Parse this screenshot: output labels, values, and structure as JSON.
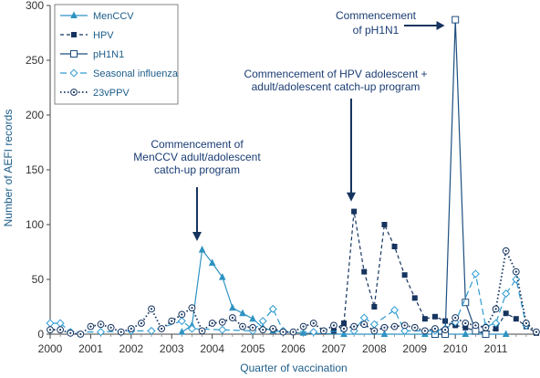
{
  "chart_data": {
    "type": "line",
    "xlabel": "Quarter of vaccination",
    "ylabel": "Number of AEFI records",
    "ylim": [
      0,
      300
    ],
    "yticks": [
      "0",
      "50",
      "100",
      "150",
      "200",
      "250",
      "300"
    ],
    "xticks": [
      "2000",
      "2001",
      "2002",
      "2003",
      "2004",
      "2005",
      "2006",
      "2007",
      "2008",
      "2009",
      "2010",
      "2011"
    ],
    "xlim": [
      2000,
      2012
    ],
    "grid": false,
    "legend_position": "top-left",
    "series": [
      {
        "name": "MenCCV",
        "style": "solid",
        "marker": "triangle",
        "color": "#2f93c2",
        "points": [
          [
            2003.25,
            2
          ],
          [
            2003.5,
            8
          ],
          [
            2003.75,
            77
          ],
          [
            2004.0,
            65
          ],
          [
            2004.25,
            52
          ],
          [
            2004.5,
            24
          ],
          [
            2004.75,
            19
          ],
          [
            2005.0,
            14
          ],
          [
            2005.25,
            6
          ],
          [
            2005.5,
            3
          ],
          [
            2005.75,
            2
          ],
          [
            2006.25,
            1
          ],
          [
            2007.25,
            0
          ],
          [
            2008.25,
            0
          ],
          [
            2009.25,
            0
          ],
          [
            2010.25,
            0
          ],
          [
            2011.25,
            0
          ]
        ]
      },
      {
        "name": "HPV",
        "style": "dashed",
        "marker": "square-filled",
        "color": "#16345f",
        "points": [
          [
            2007.0,
            3
          ],
          [
            2007.25,
            10
          ],
          [
            2007.5,
            112
          ],
          [
            2007.75,
            57
          ],
          [
            2008.0,
            25
          ],
          [
            2008.25,
            100
          ],
          [
            2008.5,
            80
          ],
          [
            2008.75,
            54
          ],
          [
            2009.0,
            33
          ],
          [
            2009.25,
            14
          ],
          [
            2009.5,
            16
          ],
          [
            2009.75,
            12
          ],
          [
            2010.0,
            8
          ],
          [
            2010.25,
            6
          ],
          [
            2010.5,
            3
          ],
          [
            2010.75,
            1
          ],
          [
            2011.0,
            5
          ],
          [
            2011.25,
            19
          ],
          [
            2011.5,
            14
          ],
          [
            2011.75,
            7
          ],
          [
            2012.0,
            1
          ]
        ]
      },
      {
        "name": "pH1N1",
        "style": "solid",
        "marker": "square-open",
        "color": "#1d4f80",
        "points": [
          [
            2009.5,
            0
          ],
          [
            2009.75,
            0
          ],
          [
            2010.0,
            287
          ],
          [
            2010.25,
            29
          ],
          [
            2010.5,
            3
          ],
          [
            2010.75,
            0
          ]
        ]
      },
      {
        "name": "Seasonal influenza",
        "style": "dashed-long",
        "marker": "diamond-open",
        "color": "#2e9bd1",
        "points": [
          [
            2000.0,
            10
          ],
          [
            2000.25,
            10
          ],
          [
            2000.5,
            2
          ],
          [
            2001.25,
            2
          ],
          [
            2002.0,
            3
          ],
          [
            2002.5,
            3
          ],
          [
            2003.25,
            12
          ],
          [
            2003.5,
            5
          ],
          [
            2004.25,
            4
          ],
          [
            2005.0,
            3
          ],
          [
            2005.25,
            12
          ],
          [
            2005.5,
            23
          ],
          [
            2005.75,
            3
          ],
          [
            2006.5,
            2
          ],
          [
            2007.5,
            3
          ],
          [
            2007.75,
            15
          ],
          [
            2008.0,
            9
          ],
          [
            2008.5,
            22
          ],
          [
            2008.75,
            3
          ],
          [
            2009.5,
            3
          ],
          [
            2009.75,
            5
          ],
          [
            2010.0,
            11
          ],
          [
            2010.5,
            55
          ],
          [
            2010.75,
            7
          ],
          [
            2011.0,
            10
          ],
          [
            2011.25,
            37
          ],
          [
            2011.5,
            50
          ],
          [
            2011.75,
            8
          ]
        ]
      },
      {
        "name": "23vPPV",
        "style": "dotted",
        "marker": "circle-dot",
        "color": "#16345f",
        "points": [
          [
            2000.0,
            4
          ],
          [
            2000.25,
            4
          ],
          [
            2000.5,
            1
          ],
          [
            2000.75,
            0
          ],
          [
            2001.0,
            7
          ],
          [
            2001.25,
            9
          ],
          [
            2001.5,
            6
          ],
          [
            2001.75,
            2
          ],
          [
            2002.0,
            5
          ],
          [
            2002.25,
            10
          ],
          [
            2002.5,
            23
          ],
          [
            2002.75,
            5
          ],
          [
            2003.0,
            12
          ],
          [
            2003.25,
            18
          ],
          [
            2003.5,
            24
          ],
          [
            2003.75,
            3
          ],
          [
            2004.0,
            10
          ],
          [
            2004.25,
            11
          ],
          [
            2004.5,
            15
          ],
          [
            2004.75,
            7
          ],
          [
            2005.0,
            6
          ],
          [
            2005.25,
            4
          ],
          [
            2005.5,
            5
          ],
          [
            2005.75,
            2
          ],
          [
            2006.0,
            2
          ],
          [
            2006.25,
            7
          ],
          [
            2006.5,
            10
          ],
          [
            2006.75,
            3
          ],
          [
            2007.0,
            8
          ],
          [
            2007.25,
            5
          ],
          [
            2007.5,
            7
          ],
          [
            2007.75,
            9
          ],
          [
            2008.0,
            3
          ],
          [
            2008.25,
            6
          ],
          [
            2008.5,
            7
          ],
          [
            2008.75,
            8
          ],
          [
            2009.0,
            6
          ],
          [
            2009.25,
            3
          ],
          [
            2009.5,
            5
          ],
          [
            2009.75,
            4
          ],
          [
            2010.0,
            15
          ],
          [
            2010.25,
            10
          ],
          [
            2010.5,
            8
          ],
          [
            2010.75,
            6
          ],
          [
            2011.0,
            23
          ],
          [
            2011.25,
            76
          ],
          [
            2011.5,
            57
          ],
          [
            2011.75,
            10
          ],
          [
            2012.0,
            2
          ]
        ]
      }
    ],
    "annotations": [
      {
        "id": "menccv",
        "lines": [
          "Commencement of",
          "MenCCV adult/adolescent",
          "catch-up program"
        ],
        "arrow_x": 2003.75,
        "arrow_y": 80
      },
      {
        "id": "hpv",
        "lines": [
          "Commencement of HPV adolescent +",
          "adult/adolescent catch-up program"
        ],
        "arrow_x": 2007.5,
        "arrow_y": 116
      },
      {
        "id": "ph1n1",
        "lines": [
          "Commencement",
          "of pH1N1"
        ],
        "arrow_x": 2009.85,
        "arrow_y": 287
      }
    ]
  }
}
